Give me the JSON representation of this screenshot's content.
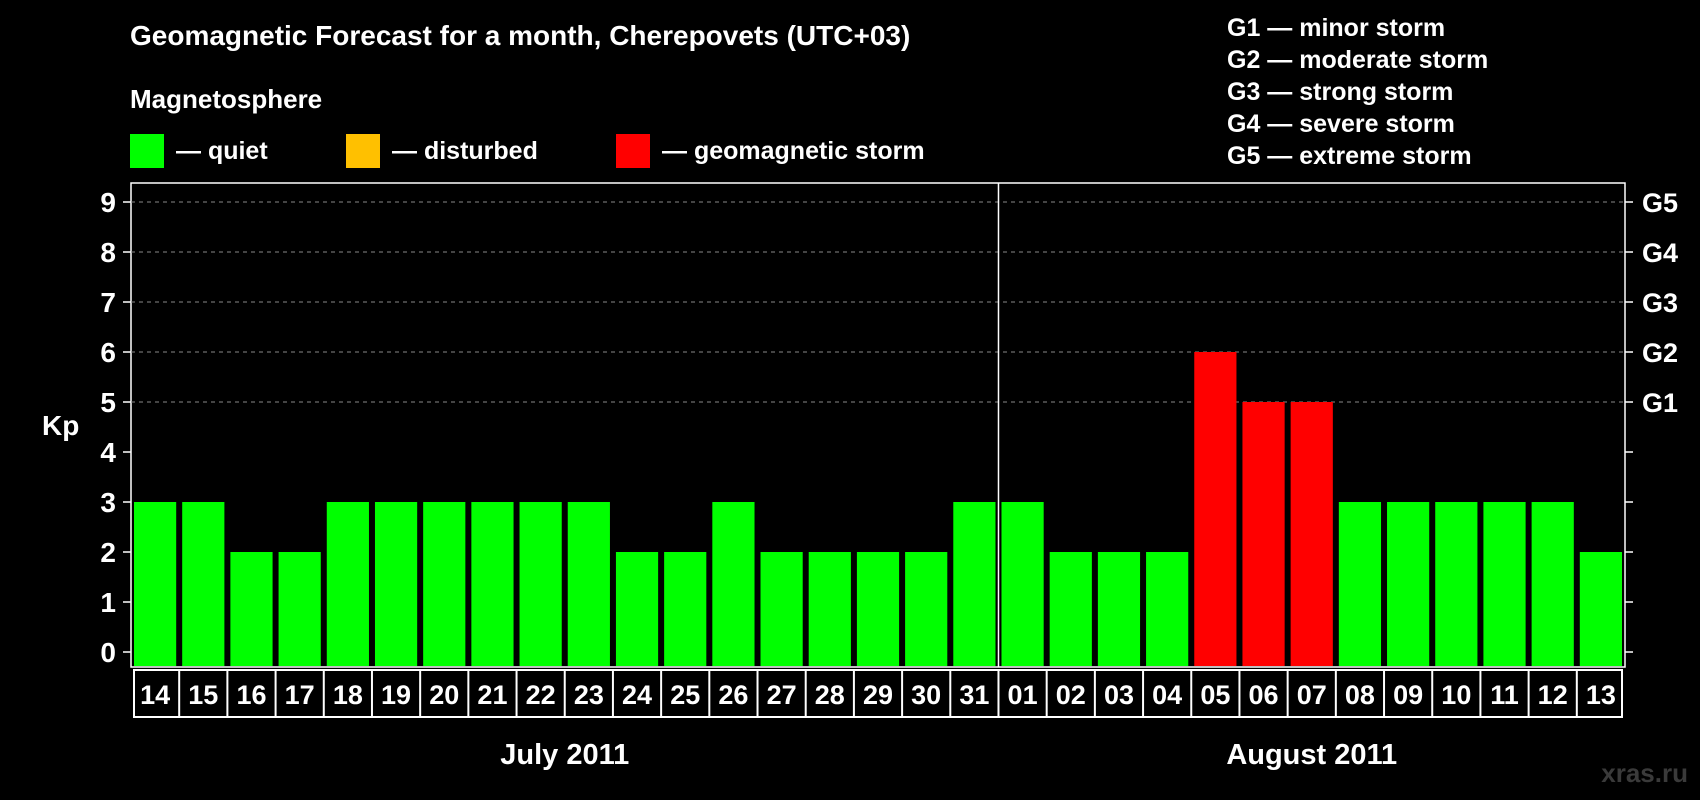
{
  "title": "Geomagnetic Forecast for a month, Cherepovets (UTC+03)",
  "legend": {
    "heading": "Magnetosphere",
    "items": [
      {
        "label": "— quiet",
        "color": "#00ff00"
      },
      {
        "label": "— disturbed",
        "color": "#ffc000"
      },
      {
        "label": "— geomagnetic storm",
        "color": "#ff0000"
      }
    ]
  },
  "storm_levels": [
    "G1 — minor storm",
    "G2 — moderate storm",
    "G3 — strong storm",
    "G4 — severe storm",
    "G5 — extreme storm"
  ],
  "credit": "xras.ru",
  "chart_data": {
    "type": "bar",
    "ylabel": "Kp",
    "ylim": [
      0,
      9
    ],
    "yticks": [
      0,
      1,
      2,
      3,
      4,
      5,
      6,
      7,
      8,
      9
    ],
    "right_axis_labels": [
      {
        "kp": 5,
        "label": "G1"
      },
      {
        "kp": 6,
        "label": "G2"
      },
      {
        "kp": 7,
        "label": "G3"
      },
      {
        "kp": 8,
        "label": "G4"
      },
      {
        "kp": 9,
        "label": "G5"
      }
    ],
    "grid": "dashed horizontal at Kp 5–9",
    "categories": [
      "14",
      "15",
      "16",
      "17",
      "18",
      "19",
      "20",
      "21",
      "22",
      "23",
      "24",
      "25",
      "26",
      "27",
      "28",
      "29",
      "30",
      "31",
      "01",
      "02",
      "03",
      "04",
      "05",
      "06",
      "07",
      "08",
      "09",
      "10",
      "11",
      "12",
      "13"
    ],
    "values": [
      3,
      3,
      2,
      2,
      3,
      3,
      3,
      3,
      3,
      3,
      2,
      2,
      3,
      2,
      2,
      2,
      2,
      3,
      3,
      2,
      2,
      2,
      6,
      5,
      5,
      3,
      3,
      3,
      3,
      3,
      2
    ],
    "colors": [
      "#00ff00",
      "#00ff00",
      "#00ff00",
      "#00ff00",
      "#00ff00",
      "#00ff00",
      "#00ff00",
      "#00ff00",
      "#00ff00",
      "#00ff00",
      "#00ff00",
      "#00ff00",
      "#00ff00",
      "#00ff00",
      "#00ff00",
      "#00ff00",
      "#00ff00",
      "#00ff00",
      "#00ff00",
      "#00ff00",
      "#00ff00",
      "#00ff00",
      "#ff0000",
      "#ff0000",
      "#ff0000",
      "#00ff00",
      "#00ff00",
      "#00ff00",
      "#00ff00",
      "#00ff00",
      "#00ff00"
    ],
    "months": [
      {
        "label": "July 2011",
        "start": 0,
        "count": 18
      },
      {
        "label": "August 2011",
        "start": 18,
        "count": 13
      }
    ]
  }
}
